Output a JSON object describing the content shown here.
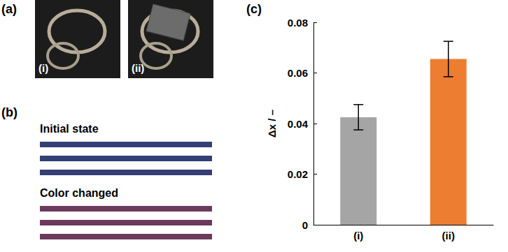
{
  "panels": {
    "a": {
      "label": "(a)",
      "images": [
        "(i)",
        "(ii)"
      ]
    },
    "b": {
      "label": "(b)",
      "strips": [
        {
          "label": "Initial state",
          "color": "#333f75"
        },
        {
          "label": "Color changed",
          "color": "#6b3a5c"
        }
      ]
    }
  },
  "chart_data": {
    "type": "bar",
    "title": "(c)",
    "y_label": "Δx / –",
    "categories": [
      "(i)",
      "(ii)"
    ],
    "values": [
      0.0425,
      0.0655
    ],
    "errors": [
      0.005,
      0.007
    ],
    "colors": [
      "#a5a5a5",
      "#ed7d31"
    ],
    "ylim": [
      0,
      0.08
    ],
    "yticks": [
      0,
      0.02,
      0.04,
      0.06,
      0.08
    ],
    "grid": false
  }
}
